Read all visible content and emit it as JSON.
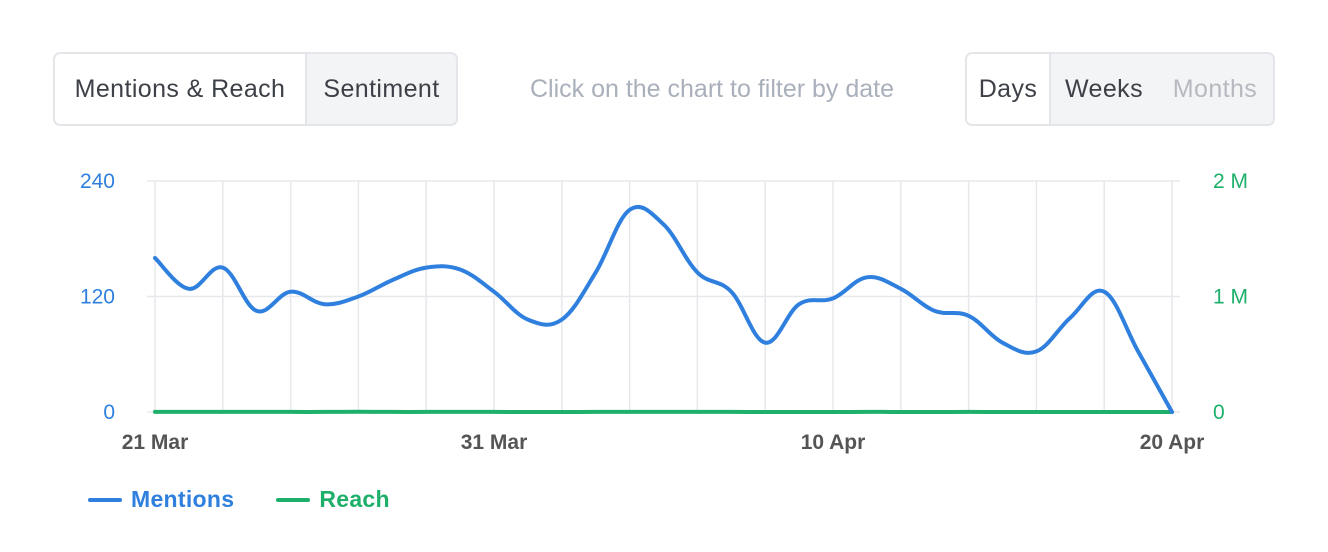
{
  "view_toggle": {
    "options": [
      "Mentions & Reach",
      "Sentiment"
    ],
    "active": "Mentions & Reach"
  },
  "hint": "Click on the chart to filter by date",
  "period_toggle": {
    "options": [
      "Days",
      "Weeks",
      "Months"
    ],
    "active": "Days",
    "disabled": [
      "Months"
    ]
  },
  "colors": {
    "mentions": "#2f80de",
    "reach": "#1eb06a",
    "grid": "#e6e8eb",
    "axis_text": "#555555"
  },
  "chart_data": {
    "type": "line",
    "x": [
      "21 Mar",
      "22 Mar",
      "23 Mar",
      "24 Mar",
      "25 Mar",
      "26 Mar",
      "27 Mar",
      "28 Mar",
      "29 Mar",
      "30 Mar",
      "31 Mar",
      "1 Apr",
      "2 Apr",
      "3 Apr",
      "4 Apr",
      "5 Apr",
      "6 Apr",
      "7 Apr",
      "8 Apr",
      "9 Apr",
      "10 Apr",
      "11 Apr",
      "12 Apr",
      "13 Apr",
      "14 Apr",
      "15 Apr",
      "16 Apr",
      "17 Apr",
      "18 Apr",
      "19 Apr",
      "20 Apr"
    ],
    "x_tick_labels": [
      "21 Mar",
      "31 Mar",
      "10 Apr",
      "20 Apr"
    ],
    "y_left": {
      "ticks": [
        "0",
        "120",
        "240"
      ],
      "range": [
        0,
        240
      ]
    },
    "y_right": {
      "ticks": [
        "0",
        "1 M",
        "2 M"
      ],
      "range": [
        0,
        2000000
      ]
    },
    "grid": true,
    "legend_position": "bottom-left",
    "series": [
      {
        "name": "Mentions",
        "axis": "left",
        "values": [
          160,
          128,
          150,
          105,
          125,
          112,
          120,
          137,
          150,
          148,
          125,
          96,
          96,
          145,
          210,
          195,
          145,
          125,
          72,
          112,
          118,
          140,
          128,
          105,
          100,
          72,
          63,
          98,
          125,
          63,
          0
        ]
      },
      {
        "name": "Reach",
        "axis": "right",
        "values": [
          770,
          500,
          560,
          470,
          450,
          510,
          1780,
          520,
          480,
          490,
          480,
          350,
          370,
          510,
          510,
          450,
          580,
          550,
          280,
          410,
          400,
          500,
          420,
          380,
          490,
          230,
          190,
          340,
          330,
          190,
          0
        ]
      }
    ]
  }
}
